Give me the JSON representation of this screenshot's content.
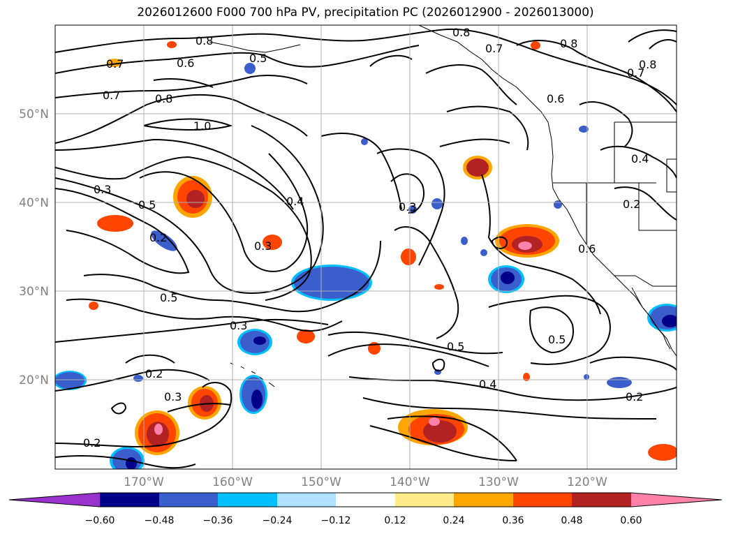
{
  "title": "2026012600 F000 700 hPa PV, precipitation PC (2026012900 - 2026013000)",
  "map": {
    "lat_ticks": [
      "50°N",
      "40°N",
      "30°N",
      "20°N"
    ],
    "lon_ticks": [
      "170°W",
      "160°W",
      "150°W",
      "140°W",
      "130°W",
      "120°W"
    ],
    "contour_labels": [
      "0.8",
      "0.6",
      "0.5",
      "0.7",
      "0.7",
      "0.8",
      "1.0",
      "0.8",
      "0.7",
      "0.8",
      "0.7",
      "0.6",
      "0.4",
      "0.2",
      "0.3",
      "0.5",
      "0.2",
      "0.4",
      "0.3",
      "0.3",
      "0.5",
      "0.3",
      "0.2",
      "0.3",
      "0.2",
      "0.5",
      "0.4",
      "0.2",
      "0.5",
      "0.6",
      "0.8"
    ],
    "colors": {
      "land_outline": "#000000",
      "grid": "#b0b0b0"
    }
  },
  "colorbar": {
    "ticks": [
      "−0.60",
      "−0.48",
      "−0.36",
      "−0.24",
      "−0.12",
      "0.12",
      "0.24",
      "0.36",
      "0.48",
      "0.60"
    ],
    "levels": [
      -0.72,
      -0.6,
      -0.48,
      -0.36,
      -0.24,
      -0.12,
      0.12,
      0.24,
      0.36,
      0.48,
      0.6,
      0.72
    ],
    "colors": [
      "#9932cc",
      "#00008b",
      "#3a5fcd",
      "#00bfff",
      "#b0e2ff",
      "#ffffff",
      "#ffec8b",
      "#ffa500",
      "#ff4500",
      "#b22222",
      "#ff82ab"
    ]
  }
}
